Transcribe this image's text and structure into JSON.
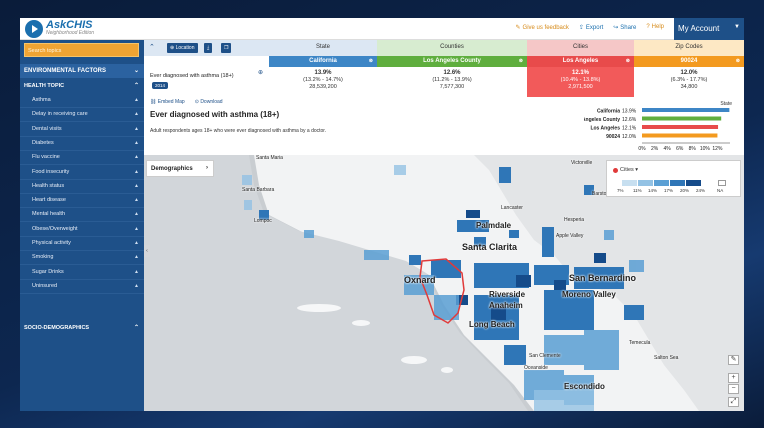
{
  "app": {
    "logo_title": "AskCHIS",
    "logo_subtitle": "Neighborhood Edition"
  },
  "toplinks": {
    "feedback": "Give us feedback",
    "export": "Export",
    "share": "Share",
    "help": "Help",
    "account": "My Account"
  },
  "sidebar": {
    "search_placeholder": "Search topics",
    "env_factors": "ENVIRONMENTAL FACTORS",
    "health_topic": "HEALTH TOPIC",
    "items": [
      "Asthma",
      "Delay in receiving care",
      "Dental visits",
      "Diabetes",
      "Flu vaccine",
      "Food insecurity",
      "Health status",
      "Heart disease",
      "Mental health",
      "Obese/Overweight",
      "Physical activity",
      "Smoking",
      "Sugar Drinks",
      "Uninsured"
    ],
    "socio": "SOCIO-DEMOGRAPHICS"
  },
  "toolbar": {
    "location_label": "Location"
  },
  "columns": [
    {
      "header": "State",
      "selected": "California",
      "value": "13.9%",
      "ci": "(13.2% - 14.7%)",
      "pop": "28,539,200",
      "head_bg": "#dce7f3",
      "sel_bg": "#3d86c6",
      "val_bg": "#ffffff"
    },
    {
      "header": "Counties",
      "selected": "Los Angeles County",
      "value": "12.6%",
      "ci": "(11.2% - 13.9%)",
      "pop": "7,577,300",
      "head_bg": "#d7ecd0",
      "sel_bg": "#5fae3e",
      "val_bg": "#ffffff"
    },
    {
      "header": "Cities",
      "selected": "Los Angeles",
      "value": "12.1%",
      "ci": "(10.4% - 13.8%)",
      "pop": "2,971,500",
      "head_bg": "#f5c7c7",
      "sel_bg": "#e84b4b",
      "val_bg": "#f25a5a"
    },
    {
      "header": "Zip Codes",
      "selected": "90024",
      "value": "12.0%",
      "ci": "(6.3% - 17.7%)",
      "pop": "34,800",
      "head_bg": "#fde8c4",
      "sel_bg": "#f39a1f",
      "val_bg": "#ffffff"
    }
  ],
  "question": {
    "label": "Ever diagnosed with asthma (18+)",
    "year": "2014",
    "embed": "Embed Map",
    "download": "Download",
    "title": "Ever diagnosed with asthma (18+)",
    "description": "Adult respondents ages 18+ who were ever diagnosed with asthma by a doctor."
  },
  "chart_data": {
    "type": "bar",
    "legend": "State",
    "categories": [
      "California",
      "Los Angeles County",
      "Los Angeles",
      "90024"
    ],
    "value_labels": [
      "13.9%",
      "12.6%",
      "12.1%",
      "12.0%"
    ],
    "values": [
      13.9,
      12.6,
      12.1,
      12.0
    ],
    "colors": [
      "#3d86c6",
      "#5fae3e",
      "#e84b4b",
      "#f39a1f"
    ],
    "xlim": [
      0,
      14
    ],
    "ticks": [
      "0%",
      "2%",
      "4%",
      "6%",
      "8%",
      "10%",
      "12%"
    ]
  },
  "map": {
    "demographics_label": "Demographics",
    "legend_title": "Cities",
    "legend_ticks": [
      "7%",
      "11%",
      "14%",
      "17%",
      "20%",
      "24%",
      "NA"
    ],
    "legend_colors": [
      "#c7dff0",
      "#93c2e4",
      "#5a9fd4",
      "#2f76b7",
      "#154b8a"
    ],
    "places": [
      {
        "name": "Santa Maria",
        "cls": "sm"
      },
      {
        "name": "Santa Barbara",
        "cls": "sm"
      },
      {
        "name": "Lompoc",
        "cls": "sm"
      },
      {
        "name": "Palmdale",
        "cls": "md"
      },
      {
        "name": "Lancaster",
        "cls": "sm"
      },
      {
        "name": "Victorville",
        "cls": "sm"
      },
      {
        "name": "Barstow",
        "cls": "sm"
      },
      {
        "name": "Hesperia",
        "cls": "sm"
      },
      {
        "name": "Apple Valley",
        "cls": "sm"
      },
      {
        "name": "Santa Clarita",
        "cls": "lg"
      },
      {
        "name": "Oxnard",
        "cls": "lg"
      },
      {
        "name": "San Bernardino",
        "cls": "lg"
      },
      {
        "name": "Riverside",
        "cls": "md"
      },
      {
        "name": "Moreno Valley",
        "cls": "md"
      },
      {
        "name": "Anaheim",
        "cls": "md"
      },
      {
        "name": "Long Beach",
        "cls": "md"
      },
      {
        "name": "Temecula",
        "cls": "sm"
      },
      {
        "name": "Escondido",
        "cls": "md"
      },
      {
        "name": "San Clemente",
        "cls": "sm"
      },
      {
        "name": "Oceanside",
        "cls": "sm"
      },
      {
        "name": "Salton Sea",
        "cls": "sm"
      }
    ]
  }
}
